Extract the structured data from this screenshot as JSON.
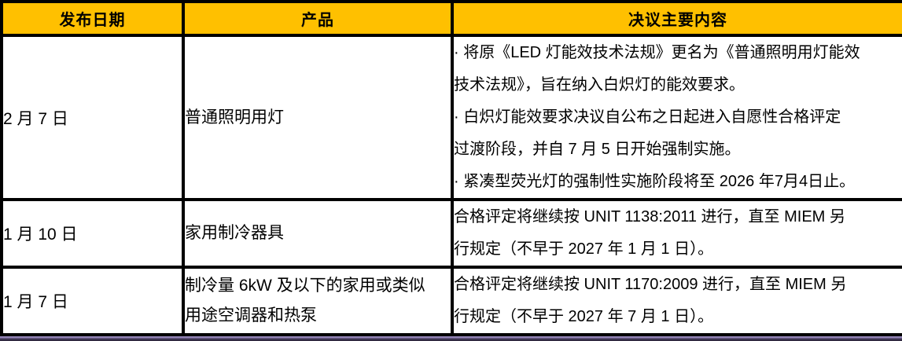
{
  "page": {
    "header_bg_color": "#FFC000",
    "border_color": "#000000",
    "bottom_bar_colors": {
      "top": "#8a7aad",
      "bottom": "#2a2438"
    }
  },
  "table": {
    "columns": [
      "发布日期",
      "产品",
      "决议主要内容"
    ],
    "rows": [
      {
        "date": "2 月 7 日",
        "product_lines": [
          "普通照明用灯"
        ],
        "content_lines": [
          "· 将原《LED 灯能效技术法规》更名为《普通照明用灯能效",
          "技术法规》，旨在纳入白炽灯的能效要求。",
          "· 白炽灯能效要求决议自公布之日起进入自愿性合格评定",
          "过渡阶段，并自 7 月 5 日开始强制实施。",
          "· 紧凑型荧光灯的强制性实施阶段将至 2026 年7月4日止。"
        ]
      },
      {
        "date": "1 月 10 日",
        "product_lines": [
          "家用制冷器具"
        ],
        "content_lines": [
          "合格评定将继续按 UNIT 1138:2011 进行，直至 MIEM 另",
          "行规定（不早于 2027 年 1 月 1 日）。"
        ]
      },
      {
        "date": "1 月 7 日",
        "product_lines": [
          "制冷量 6kW 及以下的家用或类似",
          "用途空调器和热泵"
        ],
        "content_lines": [
          "合格评定将继续按 UNIT 1170:2009 进行，直至 MIEM 另",
          "行规定（不早于 2027 年 7 月 1 日）。"
        ]
      }
    ]
  }
}
